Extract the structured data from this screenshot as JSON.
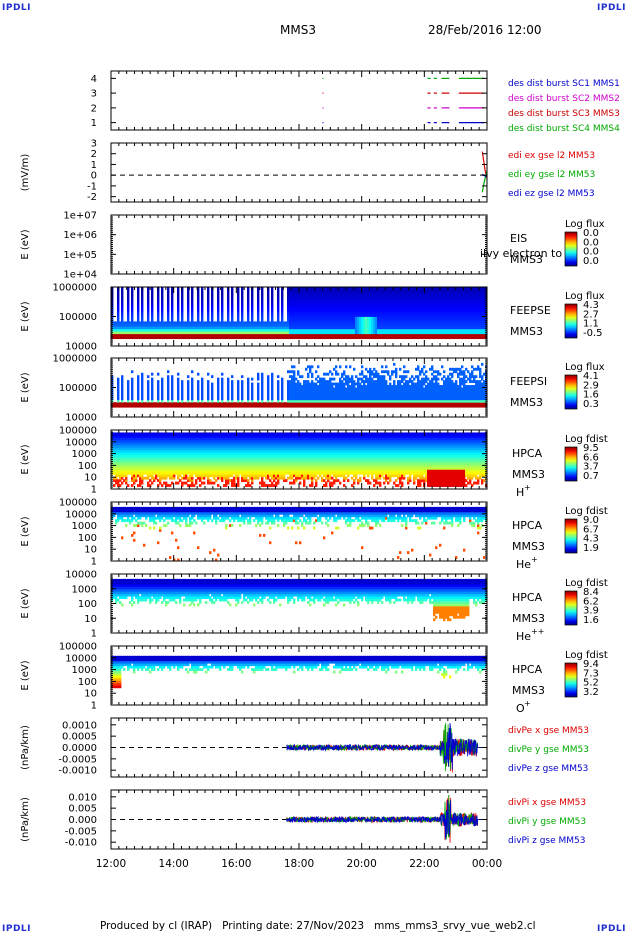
{
  "header": {
    "corner_label": "IPDLI",
    "spacecraft": "MMS3",
    "datetime": "28/Feb/2016 12:00"
  },
  "footer": {
    "text": "Produced by cl (IRAP)   Printing date: 27/Nov/2023   mms_mms3_srvy_vue_web2.cl"
  },
  "chart_data": {
    "type": "heatmap",
    "x_axis": {
      "tick_labels": [
        "12:00",
        "14:00",
        "16:00",
        "18:00",
        "20:00",
        "22:00",
        "00:00"
      ],
      "range_hours": [
        12,
        24
      ]
    },
    "panels": [
      {
        "id": "burst",
        "kind": "availability",
        "yticks": [
          "1",
          "2",
          "3",
          "4"
        ],
        "ylim": [
          0.5,
          4.5
        ],
        "legend": [
          {
            "text": "des dist burst SC1 MMS1",
            "color": "#0000cc"
          },
          {
            "text": "des dist burst SC2 MMS2",
            "color": "#cc00cc"
          },
          {
            "text": "des dist burst SC3 MMS3",
            "color": "#cc0000"
          },
          {
            "text": "des dist burst SC4 MMS4",
            "color": "#00aa00"
          }
        ],
        "intervals": [
          {
            "sc": 4,
            "start": 18.75,
            "end": 18.78
          },
          {
            "sc": 4,
            "start": 22.1,
            "end": 22.2
          },
          {
            "sc": 4,
            "start": 22.3,
            "end": 22.4
          },
          {
            "sc": 4,
            "start": 22.55,
            "end": 22.8
          },
          {
            "sc": 4,
            "start": 23.1,
            "end": 23.9
          },
          {
            "sc": 3,
            "start": 18.75,
            "end": 18.78
          },
          {
            "sc": 3,
            "start": 22.1,
            "end": 22.2
          },
          {
            "sc": 3,
            "start": 22.3,
            "end": 22.4
          },
          {
            "sc": 3,
            "start": 22.55,
            "end": 22.8
          },
          {
            "sc": 3,
            "start": 23.1,
            "end": 23.9
          },
          {
            "sc": 2,
            "start": 18.75,
            "end": 18.78
          },
          {
            "sc": 2,
            "start": 22.1,
            "end": 22.2
          },
          {
            "sc": 2,
            "start": 22.3,
            "end": 22.4
          },
          {
            "sc": 2,
            "start": 22.55,
            "end": 22.8
          },
          {
            "sc": 2,
            "start": 23.1,
            "end": 23.9
          },
          {
            "sc": 1,
            "start": 18.75,
            "end": 18.78
          },
          {
            "sc": 1,
            "start": 22.1,
            "end": 22.2
          },
          {
            "sc": 1,
            "start": 22.3,
            "end": 22.4
          },
          {
            "sc": 1,
            "start": 22.55,
            "end": 22.8
          },
          {
            "sc": 1,
            "start": 23.1,
            "end": 23.9
          }
        ]
      },
      {
        "id": "edi",
        "kind": "line",
        "ylabel": "(mV/m)",
        "yticks": [
          "3",
          "2",
          "1",
          "0",
          "-1",
          "-2"
        ],
        "ylim": [
          -2.5,
          3
        ],
        "zero_line": true,
        "legend": [
          {
            "text": "edi ex gse l2 MM53",
            "color": "#dd0000"
          },
          {
            "text": "edi ey gse l2 MM53",
            "color": "#00aa00"
          },
          {
            "text": "edi ez gse l2 MM53",
            "color": "#0000cc"
          }
        ],
        "series": [
          {
            "name": "edi ex gse l2 MM53",
            "color": "#dd0000",
            "x": [
              23.85,
              23.9,
              23.95,
              24.0
            ],
            "y": [
              2.2,
              1.2,
              0.3,
              -0.3
            ]
          },
          {
            "name": "edi ey gse l2 MM53",
            "color": "#00aa00",
            "x": [
              23.85,
              23.9,
              23.95,
              24.0
            ],
            "y": [
              -1.6,
              -0.8,
              -0.2,
              0.4
            ]
          },
          {
            "name": "edi ez gse l2 MM53",
            "color": "#0000cc",
            "x": [
              23.85,
              23.9,
              23.95,
              24.0
            ],
            "y": [
              0.1,
              0.0,
              -0.1,
              0.0
            ]
          }
        ]
      },
      {
        "id": "eis",
        "kind": "spectrogram",
        "ylabel": "E (eV)",
        "yticks": [
          "1e+07",
          "1e+06",
          "1e+05",
          "1e+04"
        ],
        "ylog": [
          4,
          7
        ],
        "instrument": [
          "EIS",
          "MMS3"
        ],
        "overlay_text": "ilvy electron to",
        "colorbar_title": "Log flux",
        "colorbar_ticks": [
          "0.0",
          "0.0",
          "0.0",
          "0.0"
        ],
        "empty": true
      },
      {
        "id": "feepse",
        "kind": "spectrogram",
        "ylabel": "E (eV)",
        "yticks": [
          "1000000",
          "100000",
          "10000"
        ],
        "ylog": [
          4,
          6
        ],
        "instrument": [
          "FEEPSE",
          "MMS3"
        ],
        "colorbar_title": "Log flux",
        "colorbar_ticks": [
          "4.3",
          "2.7",
          "1.1",
          "-0.5"
        ],
        "profile": "feepse"
      },
      {
        "id": "feepsi",
        "kind": "spectrogram",
        "ylabel": "E (eV)",
        "yticks": [
          "1000000",
          "100000",
          "10000"
        ],
        "ylog": [
          4,
          6
        ],
        "instrument": [
          "FEEPSI",
          "MMS3"
        ],
        "colorbar_title": "Log flux",
        "colorbar_ticks": [
          "4.1",
          "2.9",
          "1.6",
          "0.3"
        ],
        "profile": "feepsi"
      },
      {
        "id": "hpca_h",
        "kind": "spectrogram",
        "ylabel": "E (eV)",
        "yticks": [
          "100000",
          "10000",
          "1000",
          "100",
          "10",
          "1"
        ],
        "ylog": [
          0,
          5
        ],
        "instrument": [
          "HPCA",
          "MMS3"
        ],
        "species": "H",
        "species_sup": "+",
        "colorbar_title": "Log fdist",
        "colorbar_ticks": [
          "9.5",
          "6.6",
          "3.7",
          "0.7"
        ],
        "profile": "hpca_h"
      },
      {
        "id": "hpca_he",
        "kind": "spectrogram",
        "ylabel": "E (eV)",
        "yticks": [
          "100000",
          "10000",
          "1000",
          "100",
          "10",
          "1"
        ],
        "ylog": [
          0,
          5
        ],
        "instrument": [
          "HPCA",
          "MMS3"
        ],
        "species": "He",
        "species_sup": "+",
        "colorbar_title": "Log fdist",
        "colorbar_ticks": [
          "9.0",
          "6.7",
          "4.3",
          "1.9"
        ],
        "profile": "hpca_he"
      },
      {
        "id": "hpca_hepp",
        "kind": "spectrogram",
        "ylabel": "E (eV)",
        "yticks": [
          "10000",
          "1000",
          "100",
          "10",
          "1"
        ],
        "ylog": [
          0,
          4
        ],
        "instrument": [
          "HPCA",
          "MMS3"
        ],
        "species": "He",
        "species_sup": "++",
        "colorbar_title": "Log fdist",
        "colorbar_ticks": [
          "8.4",
          "6.2",
          "3.9",
          "1.6"
        ],
        "profile": "hpca_hepp"
      },
      {
        "id": "hpca_o",
        "kind": "spectrogram",
        "ylabel": "E (eV)",
        "yticks": [
          "100000",
          "10000",
          "1000",
          "100",
          "10",
          "1"
        ],
        "ylog": [
          0,
          5
        ],
        "instrument": [
          "HPCA",
          "MMS3"
        ],
        "species": "O",
        "species_sup": "+",
        "colorbar_title": "Log fdist",
        "colorbar_ticks": [
          "9.4",
          "7.3",
          "5.2",
          "3.2"
        ],
        "profile": "hpca_o"
      },
      {
        "id": "divpe",
        "kind": "line",
        "ylabel": "(nPa/km)",
        "yticks": [
          "0.0010",
          "0.0005",
          "0.0000",
          "-0.0005",
          "-0.0010"
        ],
        "ylim": [
          -0.0013,
          0.0013
        ],
        "zero_line": true,
        "data_start_hour": 17.6,
        "legend": [
          {
            "text": "divPe x gse MM53",
            "color": "#dd0000"
          },
          {
            "text": "divPe y gse MM53",
            "color": "#00aa00"
          },
          {
            "text": "divPe z gse MM53",
            "color": "#0000cc"
          }
        ],
        "noise": [
          {
            "from": 17.6,
            "to": 22.5,
            "amplitude": 0.00012
          },
          {
            "from": 22.5,
            "to": 23.7,
            "amplitude": 0.0004
          },
          {
            "from": 22.6,
            "to": 22.9,
            "amplitude": 0.0011
          }
        ]
      },
      {
        "id": "divpi",
        "kind": "line",
        "ylabel": "(nPa/km)",
        "yticks": [
          "0.010",
          "0.005",
          "0.000",
          "-0.005",
          "-0.010"
        ],
        "ylim": [
          -0.013,
          0.013
        ],
        "zero_line": true,
        "data_start_hour": 17.6,
        "legend": [
          {
            "text": "divPi x gse MM53",
            "color": "#dd0000"
          },
          {
            "text": "divPi y gse MM53",
            "color": "#00aa00"
          },
          {
            "text": "divPi z gse MM53",
            "color": "#0000cc"
          }
        ],
        "noise": [
          {
            "from": 17.6,
            "to": 22.5,
            "amplitude": 0.0012
          },
          {
            "from": 22.5,
            "to": 23.7,
            "amplitude": 0.003
          },
          {
            "from": 22.65,
            "to": 22.85,
            "amplitude": 0.011
          }
        ]
      }
    ]
  }
}
